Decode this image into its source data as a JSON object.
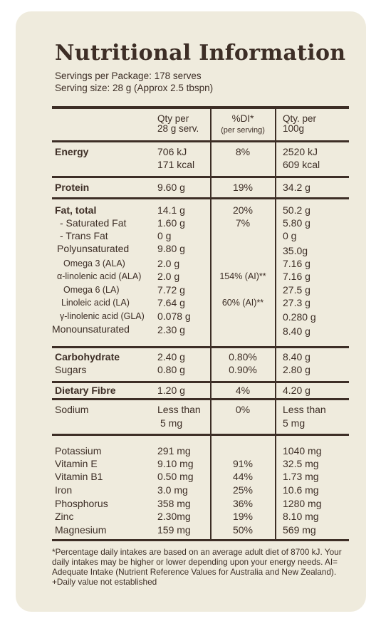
{
  "title": "Nutritional Information",
  "servings": "Servings per Package: 178 serves",
  "serving_size": "Serving size: 28 g (Approx 2.5 tbspn)",
  "header": {
    "qty_serv_1": "Qty per",
    "qty_serv_2": "28 g serv.",
    "di_1": "%DI*",
    "di_2": "(per serving)",
    "qty_100_1": "Qty. per",
    "qty_100_2": "100g"
  },
  "rows": {
    "energy": {
      "label": "Energy",
      "serv_kj": "706 kJ",
      "serv_kcal": "171 kcal",
      "di": "8%",
      "g100_kj": "2520 kJ",
      "g100_kcal": "609 kcal"
    },
    "protein": {
      "label": "Protein",
      "serv": "9.60 g",
      "di": "19%",
      "g100": "34.2 g"
    },
    "fat_total": {
      "label": "Fat, total",
      "serv": "14.1 g",
      "di": "20%",
      "g100": "50.2 g"
    },
    "sat_fat": {
      "label": "- Saturated Fat",
      "serv": "1.60 g",
      "di": "7%",
      "g100": "5.80 g"
    },
    "trans_fat": {
      "label": "- Trans Fat",
      "serv": "0 g",
      "g100": "0 g"
    },
    "poly": {
      "label": "Polyunsaturated",
      "serv": "9.80 g",
      "g100": "35.0g"
    },
    "omega3": {
      "label": "Omega 3 (ALA)",
      "serv": "2.0 g",
      "g100": "7.16 g"
    },
    "ala": {
      "label": "α-linolenic acid (ALA)",
      "serv": "2.0 g",
      "di": "154% (AI)**",
      "g100": "7.16 g"
    },
    "omega6": {
      "label": "Omega 6 (LA)",
      "serv": "7.72 g",
      "g100": "27.5 g"
    },
    "linoleic": {
      "label": "Linoleic acid (LA)",
      "serv": "7.64 g",
      "di": "60% (AI)**",
      "g100": "27.3 g"
    },
    "gla": {
      "label": "γ-linolenic acid (GLA)",
      "serv": "0.078 g",
      "g100": "0.280 g"
    },
    "mono": {
      "label": "Monounsaturated",
      "serv": "2.30 g",
      "g100": "8.40 g"
    },
    "carb": {
      "label": "Carbohydrate",
      "serv": "2.40 g",
      "di": "0.80%",
      "g100": "8.40 g"
    },
    "sugars": {
      "label": "Sugars",
      "serv": "0.80 g",
      "di": "0.90%",
      "g100": "2.80 g"
    },
    "fibre": {
      "label": "Dietary Fibre",
      "serv": "1.20 g",
      "di": "4%",
      "g100": "4.20 g"
    },
    "sodium": {
      "label": "Sodium",
      "serv_1": "Less than",
      "serv_2": "5 mg",
      "di": "0%",
      "g100_1": "Less than",
      "g100_2": "5 mg"
    },
    "potassium": {
      "label": "Potassium",
      "serv": "291 mg",
      "g100": "1040 mg"
    },
    "vit_e": {
      "label": "Vitamin E",
      "serv": "9.10 mg",
      "di": "91%",
      "g100": "32.5 mg"
    },
    "vit_b1": {
      "label": "Vitamin B1",
      "serv": "0.50 mg",
      "di": "44%",
      "g100": "1.73 mg"
    },
    "iron": {
      "label": "Iron",
      "serv": "3.0 mg",
      "di": "25%",
      "g100": "10.6 mg"
    },
    "phosphorus": {
      "label": "Phosphorus",
      "serv": "358 mg",
      "di": "36%",
      "g100": "1280 mg"
    },
    "zinc": {
      "label": "Zinc",
      "serv": "2.30mg",
      "di": "19%",
      "g100": "8.10 mg"
    },
    "magnesium": {
      "label": "Magnesium",
      "serv": "159 mg",
      "di": "50%",
      "g100": "569 mg"
    }
  },
  "footnote": "*Percentage daily intakes are based on an average adult diet of 8700 kJ. Your daily intakes may be higher or lower depending upon your energy needs. AI= Adequate Intake (Nutrient Reference Values for Australia and New Zealand). +Daily value not established"
}
